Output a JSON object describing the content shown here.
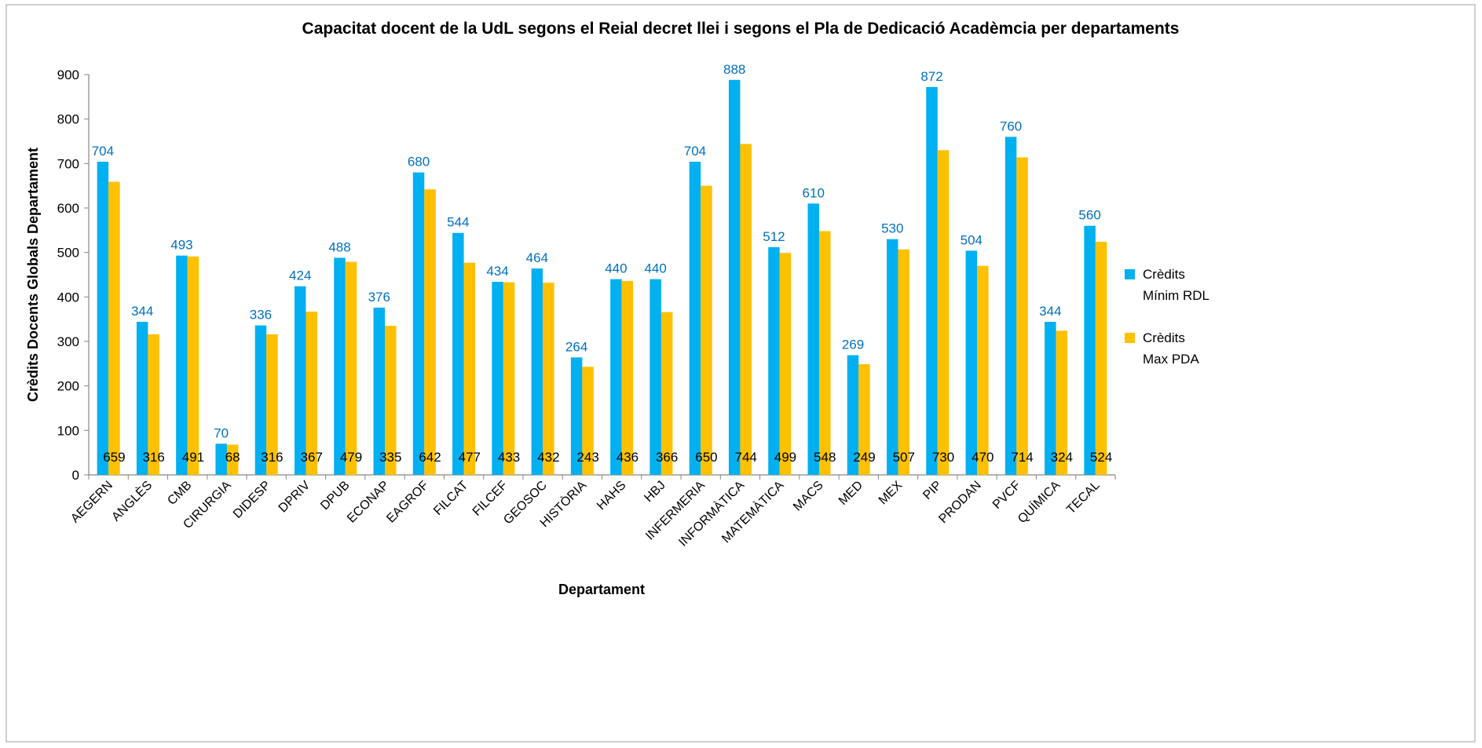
{
  "chart_data": {
    "type": "bar",
    "title": "Capacitat docent de la UdL segons el Reial decret llei i segons el Pla de Dedicació Acadèmcia per departaments",
    "x_label": "Departament",
    "y_label": "Crèdits Docents Globals Departament",
    "categories": [
      "AEGERN",
      "ANGLÈS",
      "CMB",
      "CIRURGIA",
      "DIDESP",
      "DPRIV",
      "DPUB",
      "ECONAP",
      "EAGROF",
      "FILCAT",
      "FILCEF",
      "GEOSOC",
      "HISTÒRIA",
      "HAHS",
      "HBJ",
      "INFERMERIA",
      "INFORMÀTICA",
      "MATEMÀTICA",
      "MACS",
      "MED",
      "MEX",
      "PIP",
      "PRODAN",
      "PVCF",
      "QUÍMICA",
      "TECAL"
    ],
    "series": [
      {
        "name": "Crèdits Mínim RDL",
        "color": "#00b0f0",
        "label_color": "#0070c0",
        "values": [
          704,
          344,
          493,
          70,
          336,
          424,
          488,
          376,
          680,
          544,
          434,
          464,
          264,
          440,
          440,
          704,
          888,
          512,
          610,
          269,
          530,
          872,
          504,
          760,
          344,
          560
        ]
      },
      {
        "name": "Crèdits Max PDA",
        "color": "#ffc000",
        "label_color": "#000000",
        "values": [
          659,
          316,
          491,
          68,
          316,
          367,
          479,
          335,
          642,
          477,
          433,
          432,
          243,
          436,
          366,
          650,
          744,
          499,
          548,
          249,
          507,
          730,
          470,
          714,
          324,
          524
        ]
      }
    ],
    "ylim": [
      0,
      900
    ],
    "yticks": [
      0,
      100,
      200,
      300,
      400,
      500,
      600,
      700,
      800,
      900
    ],
    "grid": false,
    "legend": "right"
  }
}
